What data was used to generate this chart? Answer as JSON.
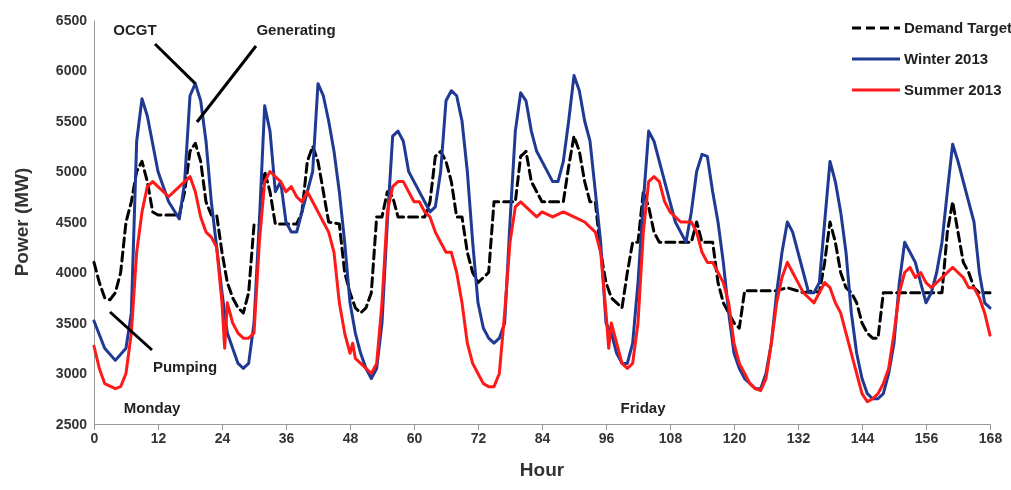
{
  "chart_data": {
    "type": "line",
    "xlabel": "Hour",
    "ylabel": "Power (MW)",
    "xlim": [
      0,
      168
    ],
    "xticks": [
      0,
      12,
      24,
      36,
      48,
      60,
      72,
      84,
      96,
      108,
      120,
      132,
      144,
      156,
      168
    ],
    "ylim": [
      2500,
      6500
    ],
    "yticks": [
      2500,
      3000,
      3500,
      4000,
      4500,
      5000,
      5500,
      6000,
      6500
    ],
    "grid": false,
    "legend": "top right",
    "marker": "none",
    "series": [
      {
        "name": "Demand Target",
        "color": "#000000",
        "line_style": "dashed",
        "x": [
          0,
          1,
          2,
          3,
          4,
          5,
          6,
          7,
          8,
          9,
          10,
          11,
          12,
          16,
          17,
          18,
          19,
          20,
          21,
          22,
          23,
          24,
          25,
          26,
          27,
          28,
          29,
          30,
          31,
          32,
          33,
          34,
          38,
          39,
          40,
          41,
          42,
          43,
          44,
          46,
          47,
          48,
          49,
          50,
          51,
          52,
          53,
          54,
          55,
          56,
          57,
          62,
          63,
          64,
          65,
          66,
          67,
          68,
          69,
          70,
          71,
          72,
          73,
          74,
          75,
          79,
          80,
          81,
          82,
          84,
          88,
          89,
          90,
          91,
          92,
          93,
          94,
          95,
          96,
          97,
          98,
          99,
          100,
          101,
          102,
          103,
          104,
          105,
          106,
          112,
          113,
          114,
          116,
          117,
          118,
          119,
          120,
          121,
          122,
          128,
          130,
          133,
          135,
          136,
          137,
          138,
          139,
          140,
          141,
          142,
          143,
          144,
          145,
          146,
          147,
          148,
          158,
          159,
          160,
          161,
          162,
          163,
          164,
          165,
          166,
          168
        ],
        "values": [
          4100,
          3900,
          3750,
          3730,
          3800,
          4000,
          4500,
          4700,
          5000,
          5100,
          4900,
          4600,
          4570,
          4570,
          4800,
          5200,
          5280,
          5100,
          4700,
          4570,
          4570,
          4200,
          3900,
          3750,
          3650,
          3600,
          3800,
          4470,
          4470,
          5000,
          4800,
          4480,
          4480,
          4600,
          5100,
          5250,
          5100,
          4800,
          4500,
          4480,
          4000,
          3800,
          3650,
          3600,
          3650,
          3800,
          4550,
          4550,
          4800,
          4750,
          4550,
          4550,
          4700,
          5150,
          5200,
          5100,
          4900,
          4550,
          4550,
          4200,
          4000,
          3900,
          3950,
          4000,
          4700,
          4700,
          5150,
          5200,
          4900,
          4700,
          4700,
          5050,
          5350,
          5200,
          4900,
          4700,
          4700,
          4200,
          3900,
          3750,
          3700,
          3650,
          4000,
          4300,
          4300,
          4800,
          4650,
          4400,
          4300,
          4300,
          4500,
          4300,
          4300,
          3900,
          3700,
          3600,
          3500,
          3450,
          3820,
          3820,
          3850,
          3800,
          3820,
          3800,
          4100,
          4500,
          4300,
          4000,
          3850,
          3800,
          3700,
          3500,
          3400,
          3350,
          3350,
          3800,
          3800,
          3800,
          4400,
          4700,
          4400,
          4100,
          4000,
          3850,
          3800,
          3800
        ]
      },
      {
        "name": "Winter 2013",
        "color": "#1f3a93",
        "x": [
          0,
          2,
          4,
          6,
          7,
          8,
          9,
          10,
          12,
          14,
          16,
          17,
          18,
          19,
          20,
          21,
          22,
          24,
          25,
          26,
          27,
          28,
          29,
          30,
          31,
          32,
          33,
          34,
          35,
          36,
          37,
          38,
          39,
          41,
          42,
          43,
          44,
          45,
          46,
          47,
          48,
          49,
          50,
          51,
          52,
          53,
          54,
          55,
          56,
          57,
          58,
          59,
          60,
          62,
          63,
          64,
          65,
          66,
          67,
          68,
          69,
          70,
          71,
          72,
          73,
          74,
          75,
          76,
          77,
          78,
          79,
          80,
          81,
          82,
          83,
          84,
          86,
          87,
          88,
          89,
          90,
          91,
          92,
          93,
          94,
          95,
          96,
          97,
          98,
          99,
          100,
          101,
          102,
          103,
          104,
          105,
          106,
          107,
          108,
          109,
          110,
          111,
          112,
          113,
          114,
          115,
          116,
          117,
          118,
          119,
          120,
          121,
          122,
          123,
          124,
          125,
          126,
          127,
          128,
          129,
          130,
          131,
          132,
          133,
          134,
          135,
          136,
          137,
          138,
          139,
          140,
          141,
          142,
          143,
          144,
          145,
          146,
          147,
          148,
          149,
          150,
          151,
          152,
          153,
          154,
          155,
          156,
          157,
          158,
          159,
          160,
          161,
          162,
          163,
          164,
          165,
          166,
          167,
          168
        ],
        "values": [
          3520,
          3250,
          3130,
          3250,
          3600,
          5300,
          5720,
          5550,
          5000,
          4700,
          4530,
          4900,
          5750,
          5870,
          5700,
          5300,
          4700,
          3800,
          3400,
          3250,
          3100,
          3050,
          3100,
          3500,
          4500,
          5650,
          5400,
          4800,
          4900,
          4500,
          4400,
          4400,
          4600,
          5000,
          5870,
          5750,
          5500,
          5200,
          4800,
          4300,
          3700,
          3400,
          3200,
          3050,
          2950,
          3050,
          3500,
          4500,
          5350,
          5400,
          5300,
          5000,
          4900,
          4700,
          4600,
          4650,
          5000,
          5700,
          5800,
          5750,
          5500,
          5000,
          4300,
          3700,
          3450,
          3350,
          3300,
          3350,
          3500,
          4500,
          5400,
          5780,
          5700,
          5400,
          5200,
          5100,
          4900,
          4900,
          5100,
          5500,
          5950,
          5800,
          5500,
          5300,
          4800,
          4300,
          3500,
          3400,
          3200,
          3100,
          3100,
          3300,
          3900,
          4700,
          5400,
          5300,
          5100,
          4900,
          4700,
          4500,
          4400,
          4300,
          4600,
          5000,
          5170,
          5150,
          4800,
          4500,
          4100,
          3600,
          3200,
          3050,
          2950,
          2900,
          2850,
          2850,
          3000,
          3300,
          3800,
          4200,
          4500,
          4400,
          4200,
          4000,
          3800,
          3800,
          3900,
          4500,
          5100,
          4900,
          4600,
          4200,
          3600,
          3200,
          2950,
          2800,
          2750,
          2750,
          2800,
          3000,
          3300,
          3900,
          4300,
          4200,
          4100,
          3900,
          3700,
          3800,
          4000,
          4300,
          4800,
          5270,
          5100,
          4900,
          4700,
          4500,
          4000,
          3700,
          3650
        ]
      },
      {
        "name": "Summer 2013",
        "color": "#ff1a1a",
        "x": [
          0,
          1,
          2,
          4,
          5,
          6,
          7,
          8,
          9,
          10,
          11,
          12,
          13,
          14,
          15,
          16,
          17,
          18,
          19,
          20,
          21,
          22,
          23,
          24,
          24.5,
          25,
          26,
          27,
          28,
          29,
          30,
          31,
          32,
          33,
          34,
          35,
          36,
          37,
          38,
          39,
          40,
          41,
          42,
          43,
          44,
          45,
          46,
          47,
          48,
          48.5,
          49,
          50,
          51,
          52,
          53,
          54,
          55,
          56,
          57,
          58,
          59,
          60,
          61,
          62,
          63,
          64,
          65,
          66,
          67,
          68,
          69,
          70,
          71,
          72,
          73,
          74,
          75,
          76,
          77,
          78,
          79,
          80,
          81,
          82,
          83,
          84,
          86,
          88,
          90,
          92,
          94,
          95,
          96,
          96.5,
          97,
          98,
          99,
          100,
          101,
          102,
          103,
          104,
          105,
          106,
          107,
          108,
          110,
          112,
          113,
          114,
          115,
          116,
          117,
          118,
          119,
          120,
          121,
          122,
          123,
          124,
          125,
          126,
          127,
          128,
          129,
          130,
          131,
          132,
          133,
          134,
          135,
          136,
          137,
          138,
          139,
          140,
          141,
          142,
          143,
          144,
          145,
          146,
          147,
          148,
          149,
          150,
          151,
          152,
          153,
          154,
          155,
          156,
          157,
          158,
          159,
          160,
          161,
          162,
          163,
          164,
          165,
          166,
          167,
          168
        ],
        "values": [
          3270,
          3050,
          2900,
          2850,
          2870,
          3000,
          3400,
          4200,
          4600,
          4850,
          4900,
          4850,
          4800,
          4750,
          4800,
          4850,
          4900,
          4950,
          4800,
          4550,
          4400,
          4350,
          4250,
          3700,
          3250,
          3700,
          3500,
          3400,
          3350,
          3350,
          3400,
          4300,
          4900,
          5000,
          4950,
          4900,
          4800,
          4850,
          4750,
          4700,
          4800,
          4700,
          4600,
          4500,
          4400,
          4200,
          3700,
          3400,
          3200,
          3300,
          3150,
          3100,
          3050,
          3000,
          3100,
          3700,
          4600,
          4850,
          4900,
          4900,
          4800,
          4700,
          4700,
          4600,
          4550,
          4400,
          4300,
          4200,
          4200,
          4000,
          3700,
          3300,
          3100,
          3000,
          2900,
          2870,
          2870,
          3000,
          3600,
          4300,
          4650,
          4700,
          4650,
          4600,
          4550,
          4600,
          4550,
          4600,
          4550,
          4500,
          4400,
          4200,
          3600,
          3250,
          3500,
          3300,
          3100,
          3050,
          3100,
          3500,
          4400,
          4900,
          4950,
          4900,
          4700,
          4600,
          4500,
          4500,
          4400,
          4200,
          4100,
          4100,
          4000,
          3900,
          3700,
          3300,
          3100,
          3000,
          2900,
          2850,
          2830,
          2950,
          3300,
          3700,
          3950,
          4100,
          4000,
          3900,
          3800,
          3750,
          3700,
          3800,
          3900,
          3850,
          3700,
          3600,
          3400,
          3200,
          3000,
          2800,
          2720,
          2750,
          2800,
          2900,
          3050,
          3400,
          3800,
          4000,
          4050,
          3950,
          4000,
          3900,
          3850,
          3900,
          3950,
          4000,
          4050,
          4000,
          3950,
          3850,
          3850,
          3750,
          3600,
          3380
        ]
      }
    ],
    "annotations": [
      {
        "text": "OCGT",
        "x": 19,
        "y": 5870
      },
      "Generating",
      "Pumping",
      "Monday",
      "Friday"
    ]
  }
}
